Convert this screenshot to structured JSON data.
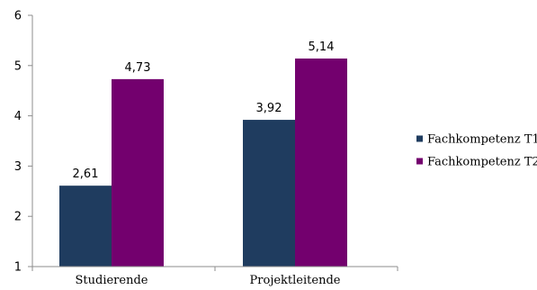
{
  "chart_data": {
    "type": "bar",
    "categories": [
      "Studierende",
      "Projektleitende"
    ],
    "series": [
      {
        "name": "Fachkompetenz T1",
        "values": [
          2.61,
          3.92
        ],
        "labels": [
          "2,61",
          "3,92"
        ],
        "color": "#1f3c5f"
      },
      {
        "name": "Fachkompetenz T2",
        "values": [
          4.73,
          5.14
        ],
        "labels": [
          "4,73",
          "5,14"
        ],
        "color": "#73006e"
      }
    ],
    "ylim": [
      1,
      6
    ],
    "yticks": [
      1,
      2,
      3,
      4,
      5,
      6
    ],
    "ytick_labels": [
      "1",
      "2",
      "3",
      "4",
      "5",
      "6"
    ],
    "grid": false,
    "legend_position": "right",
    "title": "",
    "xlabel": "",
    "ylabel": ""
  }
}
